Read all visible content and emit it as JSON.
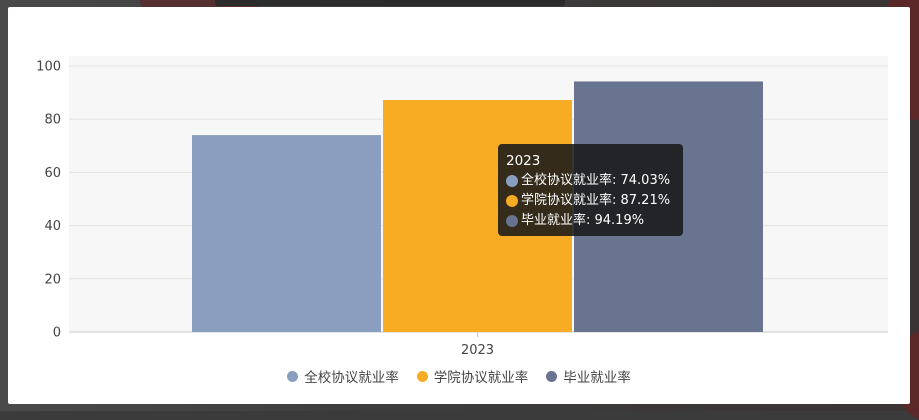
{
  "page": {
    "background_color": "#3b3b3b"
  },
  "chart_data": {
    "type": "bar",
    "categories": [
      "2023"
    ],
    "series": [
      {
        "name": "全校协议就业率",
        "values": [
          74.03
        ],
        "color": "#8a9fc0"
      },
      {
        "name": "学院协议就业率",
        "values": [
          87.21
        ],
        "color": "#f7ac23"
      },
      {
        "name": "毕业就业率",
        "values": [
          94.19
        ],
        "color": "#697490"
      }
    ],
    "title": "",
    "xlabel": "",
    "ylabel": "",
    "ylim": [
      0,
      100
    ],
    "yticks": [
      "0",
      "20",
      "40",
      "60",
      "80",
      "100"
    ],
    "grid": true,
    "legend_position": "bottom",
    "tooltip": {
      "title": "2023",
      "rows": [
        "全校协议就业率: 74.03%",
        "学院协议就业率: 87.21%",
        "毕业就业率: 94.19%"
      ]
    }
  }
}
